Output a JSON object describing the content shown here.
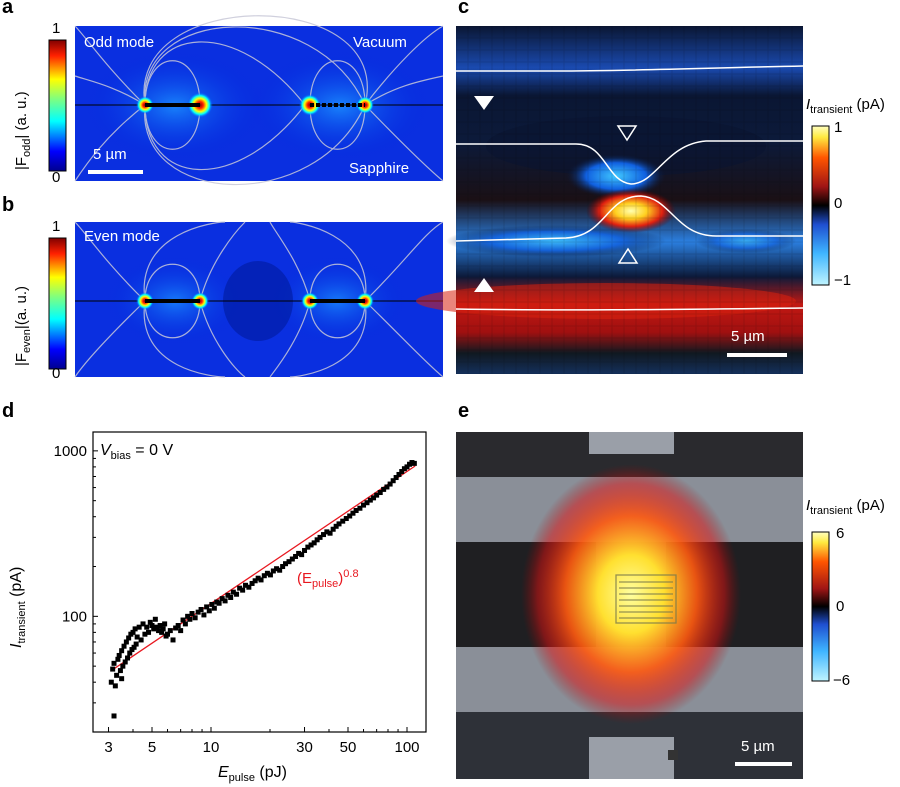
{
  "panels": {
    "a": {
      "label": "a",
      "mode_label": "Odd mode",
      "top_label": "Vacuum",
      "bottom_label": "Sapphire",
      "scale_label": "5 µm",
      "cb_label_prefix": "|F",
      "cb_label_sub": "odd",
      "cb_label_suffix": "| (a. u.)",
      "cb_max": "1",
      "cb_min": "0"
    },
    "b": {
      "label": "b",
      "mode_label": "Even mode",
      "cb_label_prefix": "|F",
      "cb_label_sub": "even",
      "cb_label_suffix": "|(a. u.)",
      "cb_max": "1",
      "cb_min": "0"
    },
    "c": {
      "label": "c",
      "cb_label_main": "I",
      "cb_label_sub": "transient",
      "cb_label_unit": "(pA)",
      "cb_ticks": [
        "1",
        "0",
        "−1"
      ],
      "scale_label": "5 µm"
    },
    "d": {
      "label": "d",
      "vbias_main": "V",
      "vbias_sub": "bias",
      "vbias_rest": " = 0 V",
      "fit_main": "(E",
      "fit_sub": "pulse",
      "fit_close": ")",
      "fit_exp": "0.8",
      "xlabel_main": "E",
      "xlabel_sub": "pulse",
      "xlabel_unit": " (pJ)",
      "ylabel_main": "I",
      "ylabel_sub": "transient",
      "ylabel_unit": " (pA)"
    },
    "e": {
      "label": "e",
      "cb_label_main": "I",
      "cb_label_sub": "transient",
      "cb_label_unit": "(pA)",
      "cb_ticks": [
        "6",
        "0",
        "−6"
      ],
      "scale_label": "5 µm"
    }
  },
  "colors": {
    "fit_line": "#e8171f",
    "fit_text": "#e8171f",
    "marker": "#000000"
  },
  "chart_data": {
    "type": "scatter",
    "x_scale": "log",
    "y_scale": "log",
    "xlim": [
      2.5,
      125
    ],
    "ylim": [
      20,
      1300
    ],
    "x_ticks": [
      3,
      5,
      10,
      30,
      50,
      100
    ],
    "x_tick_labels": [
      "3",
      "5",
      "10",
      "30",
      "50",
      "100"
    ],
    "y_ticks": [
      100,
      1000
    ],
    "y_tick_labels": [
      "100",
      "1000"
    ],
    "fit": {
      "label": "(Epulse)^0.8",
      "exponent": 0.8,
      "x": [
        3.1,
        110
      ],
      "y": [
        47,
        810
      ]
    },
    "points": {
      "x": [
        3.1,
        3.15,
        3.2,
        3.25,
        3.3,
        3.35,
        3.4,
        3.45,
        3.5,
        3.55,
        3.6,
        3.65,
        3.7,
        3.75,
        3.8,
        3.85,
        3.9,
        3.95,
        4.0,
        4.05,
        4.1,
        4.15,
        4.2,
        4.3,
        4.4,
        4.5,
        4.6,
        4.7,
        4.8,
        4.9,
        5.0,
        5.1,
        5.2,
        5.3,
        5.4,
        5.5,
        5.6,
        5.7,
        5.8,
        5.9,
        6.0,
        6.2,
        6.4,
        6.6,
        6.8,
        7.0,
        7.2,
        7.4,
        7.6,
        7.8,
        8.0,
        8.3,
        8.6,
        8.9,
        9.2,
        9.5,
        9.8,
        10.1,
        10.4,
        10.7,
        11.0,
        11.4,
        11.8,
        12.2,
        12.6,
        13.0,
        13.5,
        14.0,
        14.5,
        15.0,
        15.6,
        16.2,
        16.8,
        17.4,
        18.0,
        18.7,
        19.4,
        20.1,
        20.8,
        21.6,
        22.4,
        23.2,
        24.0,
        25.0,
        26.0,
        27.0,
        28.0,
        29.0,
        30.0,
        31.2,
        32.4,
        33.6,
        34.8,
        36.0,
        37.5,
        39.0,
        40.5,
        42.0,
        43.5,
        45.0,
        47.0,
        49.0,
        51.0,
        53.0,
        55.0,
        57.5,
        60.0,
        62.5,
        65.0,
        67.5,
        70.0,
        73.0,
        76.0,
        79.0,
        82.0,
        85.0,
        88.0,
        91.0,
        94.0,
        97.0,
        100.0,
        103.0,
        106.0,
        109.0,
        3.2,
        3.5
      ],
      "y": [
        40,
        48,
        52,
        38,
        44,
        55,
        58,
        47,
        62,
        50,
        66,
        53,
        70,
        56,
        74,
        60,
        78,
        63,
        80,
        65,
        84,
        68,
        75,
        86,
        72,
        90,
        78,
        86,
        80,
        92,
        88,
        84,
        96,
        86,
        82,
        88,
        80,
        84,
        90,
        76,
        78,
        82,
        72,
        85,
        88,
        82,
        95,
        90,
        100,
        96,
        104,
        98,
        106,
        110,
        102,
        114,
        108,
        118,
        112,
        122,
        120,
        128,
        124,
        134,
        130,
        140,
        136,
        148,
        144,
        154,
        150,
        158,
        164,
        170,
        166,
        176,
        182,
        178,
        188,
        194,
        190,
        200,
        208,
        214,
        222,
        230,
        240,
        236,
        250,
        262,
        270,
        278,
        290,
        300,
        312,
        324,
        318,
        336,
        350,
        362,
        376,
        390,
        404,
        420,
        436,
        450,
        470,
        486,
        504,
        520,
        540,
        560,
        585,
        605,
        630,
        660,
        690,
        720,
        750,
        780,
        800,
        830,
        850,
        840,
        25,
        42
      ]
    }
  }
}
